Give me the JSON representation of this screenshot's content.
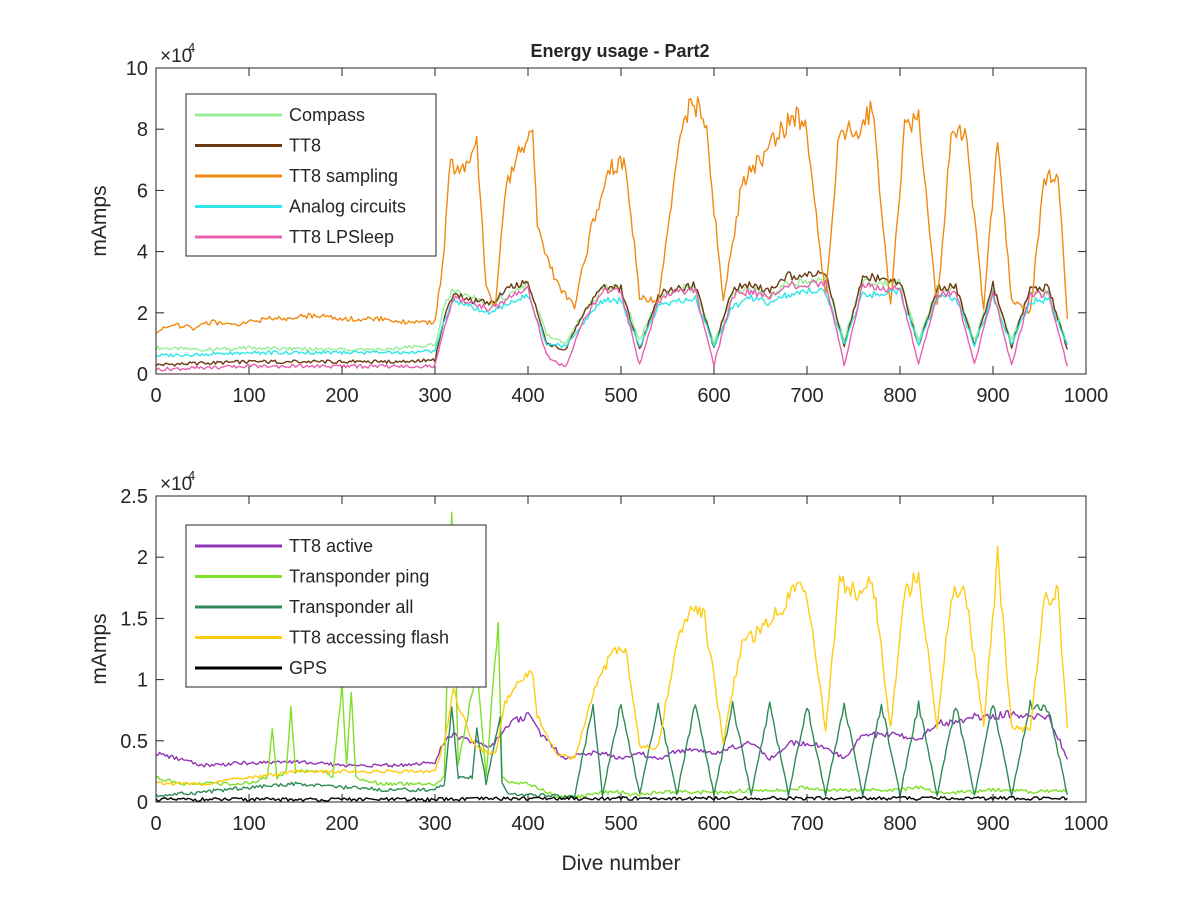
{
  "figure": {
    "title": "Energy usage - Part2"
  },
  "chart_data": [
    {
      "type": "line",
      "title": "Energy usage - Part2",
      "xlabel": "",
      "ylabel": "mAmps",
      "xlim": [
        0,
        1000
      ],
      "ylim": [
        0,
        100000
      ],
      "exponent_label": "×10",
      "exponent_power": "4",
      "xticks": [
        "0",
        "100",
        "200",
        "300",
        "400",
        "500",
        "600",
        "700",
        "800",
        "900",
        "1000"
      ],
      "yticks": [
        "0",
        "2",
        "4",
        "6",
        "8",
        "10"
      ],
      "legend_position": "top-left",
      "grid": false,
      "series": [
        {
          "name": "Compass",
          "color": "#98ee98",
          "x": [
            0,
            50,
            100,
            150,
            200,
            250,
            300,
            310,
            320,
            340,
            360,
            380,
            400,
            420,
            440,
            460,
            480,
            500,
            520,
            540,
            560,
            580,
            600,
            620,
            640,
            660,
            680,
            700,
            720,
            740,
            760,
            780,
            800,
            820,
            840,
            860,
            880,
            900,
            920,
            940,
            960,
            980
          ],
          "values": [
            8500,
            8000,
            8500,
            8200,
            8000,
            8000,
            9500,
            22000,
            28000,
            25000,
            23000,
            26000,
            29000,
            13000,
            10000,
            20000,
            28000,
            28000,
            11000,
            25000,
            28000,
            28000,
            10000,
            26000,
            28000,
            25000,
            30000,
            30000,
            32000,
            11000,
            31000,
            30000,
            30000,
            11000,
            28000,
            28000,
            11000,
            28000,
            11000,
            27000,
            27000,
            10000
          ]
        },
        {
          "name": "TT8",
          "color": "#6b3a12",
          "x": [
            0,
            50,
            100,
            150,
            200,
            250,
            300,
            310,
            320,
            340,
            360,
            380,
            400,
            420,
            440,
            460,
            480,
            500,
            520,
            540,
            560,
            580,
            600,
            620,
            640,
            660,
            680,
            700,
            720,
            740,
            760,
            780,
            800,
            820,
            840,
            860,
            880,
            900,
            920,
            940,
            960,
            980
          ],
          "values": [
            3000,
            3500,
            4000,
            4000,
            4000,
            4000,
            4500,
            18000,
            27000,
            24000,
            23000,
            28000,
            30000,
            10000,
            8000,
            20000,
            28000,
            28000,
            8000,
            26000,
            28000,
            29000,
            8500,
            28000,
            29000,
            27000,
            32000,
            32000,
            33000,
            9000,
            32000,
            31000,
            30000,
            9000,
            28000,
            29000,
            9000,
            29000,
            9000,
            28000,
            28000,
            8000
          ]
        },
        {
          "name": "TT8 sampling",
          "color": "#f08a10",
          "x": [
            0,
            20,
            40,
            60,
            80,
            100,
            120,
            140,
            160,
            180,
            200,
            220,
            240,
            260,
            280,
            300,
            310,
            315,
            330,
            345,
            355,
            365,
            375,
            390,
            405,
            410,
            430,
            450,
            470,
            490,
            505,
            520,
            540,
            560,
            575,
            590,
            610,
            630,
            650,
            670,
            685,
            700,
            720,
            735,
            755,
            770,
            790,
            805,
            820,
            840,
            855,
            870,
            890,
            905,
            920,
            940,
            955,
            970,
            980
          ],
          "values": [
            14000,
            16000,
            15000,
            17000,
            16000,
            17000,
            18000,
            18000,
            19000,
            19000,
            18000,
            18000,
            18000,
            17000,
            17000,
            17000,
            40000,
            68000,
            66000,
            75000,
            28000,
            22000,
            60000,
            72000,
            78000,
            48000,
            30000,
            22000,
            50000,
            68000,
            70000,
            25000,
            24000,
            70000,
            90000,
            84000,
            24000,
            62000,
            70000,
            78000,
            85000,
            79000,
            25000,
            80000,
            79000,
            87000,
            22000,
            80000,
            83000,
            22000,
            78000,
            80000,
            21000,
            78000,
            24000,
            20000,
            64000,
            66000,
            18000
          ]
        },
        {
          "name": "Analog circuits",
          "color": "#2ee6e6",
          "x": [
            0,
            50,
            100,
            150,
            200,
            250,
            300,
            310,
            320,
            340,
            360,
            380,
            400,
            420,
            440,
            460,
            480,
            500,
            520,
            540,
            560,
            580,
            600,
            620,
            640,
            660,
            680,
            700,
            720,
            740,
            760,
            780,
            800,
            820,
            840,
            860,
            880,
            900,
            920,
            940,
            960,
            980
          ],
          "values": [
            6000,
            6500,
            7000,
            7000,
            7000,
            7000,
            7500,
            18000,
            24000,
            22000,
            20000,
            23000,
            26000,
            10000,
            9000,
            17000,
            24000,
            24000,
            9000,
            22000,
            24000,
            25000,
            9000,
            22000,
            25000,
            23000,
            26000,
            27000,
            27000,
            9500,
            26000,
            26000,
            27000,
            9500,
            25000,
            25000,
            9500,
            25000,
            9500,
            24000,
            24000,
            9500
          ]
        },
        {
          "name": "TT8 LPSleep",
          "color": "#e860b0",
          "x": [
            0,
            50,
            100,
            150,
            200,
            250,
            300,
            310,
            320,
            340,
            360,
            380,
            400,
            420,
            440,
            460,
            480,
            500,
            520,
            540,
            560,
            580,
            600,
            620,
            640,
            660,
            680,
            700,
            720,
            740,
            760,
            780,
            800,
            820,
            840,
            860,
            880,
            900,
            920,
            940,
            960,
            980
          ],
          "values": [
            1500,
            2000,
            2500,
            2500,
            2500,
            2500,
            2500,
            15000,
            25000,
            23000,
            21000,
            25000,
            28000,
            6000,
            2000,
            18000,
            27000,
            27000,
            3000,
            24000,
            27000,
            27000,
            3000,
            26000,
            27000,
            25000,
            29000,
            29000,
            30000,
            3000,
            29000,
            28000,
            28000,
            3000,
            26000,
            27000,
            3000,
            27000,
            3000,
            26000,
            26000,
            2500
          ]
        }
      ]
    },
    {
      "type": "line",
      "title": "",
      "xlabel": "Dive number",
      "ylabel": "mAmps",
      "xlim": [
        0,
        1000
      ],
      "ylim": [
        0,
        25000
      ],
      "exponent_label": "×10",
      "exponent_power": "4",
      "xticks": [
        "0",
        "100",
        "200",
        "300",
        "400",
        "500",
        "600",
        "700",
        "800",
        "900",
        "1000"
      ],
      "yticks": [
        "0",
        "0.5",
        "1",
        "1.5",
        "2",
        "2.5"
      ],
      "legend_position": "top-left",
      "grid": false,
      "series": [
        {
          "name": "TT8 active",
          "color": "#8e35b5",
          "x": [
            0,
            50,
            100,
            150,
            200,
            250,
            300,
            310,
            320,
            340,
            360,
            380,
            400,
            420,
            440,
            460,
            480,
            500,
            520,
            540,
            560,
            580,
            600,
            620,
            640,
            660,
            680,
            700,
            720,
            740,
            760,
            780,
            800,
            820,
            840,
            860,
            880,
            900,
            920,
            940,
            960,
            980
          ],
          "values": [
            4000,
            3000,
            3200,
            3300,
            3000,
            3000,
            3200,
            5000,
            5500,
            5000,
            4500,
            6500,
            7000,
            5000,
            3500,
            4000,
            4000,
            3500,
            4000,
            3500,
            4200,
            4200,
            4000,
            4500,
            4800,
            3500,
            4800,
            4800,
            4500,
            3500,
            5500,
            5500,
            5500,
            5000,
            6500,
            6500,
            7000,
            7000,
            7200,
            7000,
            7000,
            3500
          ]
        },
        {
          "name": "Transponder ping",
          "color": "#7fe02a",
          "x": [
            0,
            30,
            60,
            100,
            120,
            125,
            130,
            140,
            145,
            150,
            180,
            190,
            200,
            205,
            210,
            215,
            240,
            280,
            300,
            310,
            318,
            325,
            345,
            355,
            368,
            372,
            380,
            400,
            430,
            450,
            470,
            480,
            500,
            510,
            520,
            540,
            560,
            580,
            600,
            620,
            640,
            660,
            680,
            700,
            720,
            740,
            760,
            780,
            800,
            820,
            840,
            860,
            880,
            900,
            920,
            940,
            960,
            970,
            980
          ],
          "values": [
            2000,
            1500,
            1500,
            1500,
            2000,
            6000,
            2000,
            2500,
            7800,
            2500,
            2500,
            2000,
            9500,
            3000,
            9000,
            2000,
            1500,
            1500,
            1500,
            2000,
            24000,
            3000,
            11000,
            2000,
            15000,
            2000,
            1500,
            1500,
            500,
            400,
            600,
            800,
            800,
            600,
            600,
            800,
            800,
            800,
            800,
            800,
            1000,
            1000,
            1000,
            1200,
            1000,
            1000,
            1000,
            1000,
            1000,
            1200,
            800,
            800,
            800,
            1000,
            1000,
            800,
            900,
            900,
            900
          ]
        },
        {
          "name": "Transponder all",
          "color": "#2e8b57",
          "x": [
            0,
            50,
            100,
            150,
            200,
            250,
            300,
            310,
            318,
            325,
            340,
            345,
            355,
            370,
            372,
            380,
            400,
            450,
            470,
            480,
            500,
            520,
            540,
            560,
            580,
            600,
            620,
            640,
            660,
            680,
            700,
            720,
            740,
            760,
            780,
            800,
            820,
            840,
            860,
            880,
            900,
            920,
            940,
            960,
            980
          ],
          "values": [
            500,
            800,
            1200,
            1500,
            1200,
            1000,
            1000,
            1500,
            7500,
            2000,
            2000,
            6000,
            1500,
            7000,
            1500,
            600,
            600,
            400,
            8000,
            600,
            8000,
            600,
            8000,
            600,
            8000,
            600,
            8000,
            600,
            8000,
            600,
            8000,
            600,
            8000,
            600,
            8000,
            600,
            8000,
            600,
            8000,
            600,
            8000,
            600,
            8000,
            7500,
            600
          ]
        },
        {
          "name": "TT8 accessing flash",
          "color": "#ffcc10",
          "x": [
            0,
            50,
            100,
            150,
            200,
            250,
            300,
            310,
            320,
            340,
            355,
            365,
            375,
            390,
            405,
            410,
            430,
            450,
            470,
            490,
            505,
            520,
            540,
            560,
            575,
            590,
            610,
            630,
            650,
            670,
            685,
            700,
            720,
            735,
            755,
            770,
            790,
            805,
            820,
            840,
            855,
            870,
            890,
            905,
            920,
            940,
            955,
            970,
            980
          ],
          "values": [
            1500,
            1500,
            2000,
            2500,
            2500,
            2500,
            2500,
            5000,
            9000,
            5000,
            4000,
            4000,
            8000,
            10000,
            10500,
            7000,
            4000,
            3500,
            9000,
            12000,
            12500,
            4500,
            4500,
            13000,
            16000,
            15000,
            5000,
            13000,
            14000,
            15500,
            17500,
            17000,
            6000,
            18000,
            17000,
            18500,
            6000,
            17000,
            18500,
            6000,
            17000,
            17500,
            6000,
            20000,
            6000,
            6000,
            16500,
            17000,
            6000
          ]
        },
        {
          "name": "GPS",
          "color": "#000000",
          "x": [
            0,
            100,
            200,
            300,
            400,
            500,
            600,
            700,
            800,
            900,
            980
          ],
          "values": [
            200,
            200,
            200,
            200,
            300,
            300,
            300,
            300,
            300,
            300,
            300
          ]
        }
      ]
    }
  ]
}
